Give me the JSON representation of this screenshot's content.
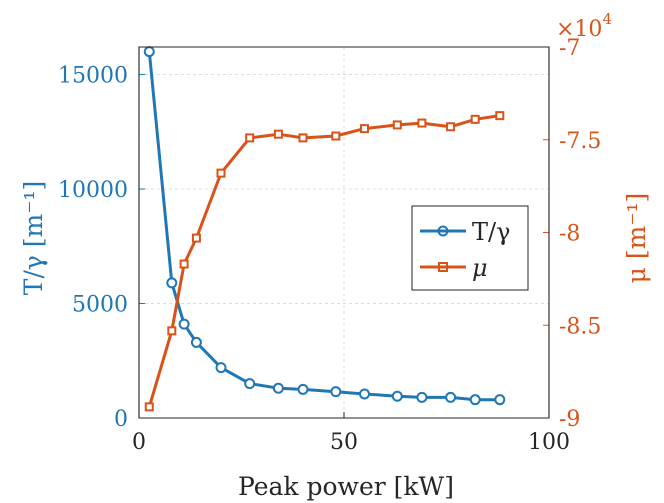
{
  "chart_data": {
    "type": "line",
    "xlabel": "Peak power [kW]",
    "xlim": [
      0,
      100
    ],
    "xticks": [
      0,
      50,
      100
    ],
    "y_left": {
      "label": "T/γ [m⁻¹]",
      "lim": [
        0,
        16200
      ],
      "ticks": [
        0,
        5000,
        10000,
        15000
      ],
      "color": "#1f77b4"
    },
    "y_right": {
      "label": "μ [m⁻¹]",
      "lim": [
        -90000,
        -70000
      ],
      "ticks": [
        -90000,
        -85000,
        -80000,
        -75000,
        -70000
      ],
      "tick_labels": [
        "-9",
        "-8.5",
        "-8",
        "-7.5",
        "-7"
      ],
      "exponent_label": "×10",
      "exponent_power": "4",
      "color": "#d95319"
    },
    "grid": true,
    "legend_position": "center-right",
    "series": [
      {
        "name": "T/γ",
        "axis": "left",
        "marker": "circle",
        "color": "#1f77b4",
        "x": [
          2.5,
          8,
          11,
          14,
          20,
          27,
          34,
          40,
          48,
          55,
          63,
          69,
          76,
          82,
          88
        ],
        "y": [
          16000,
          5900,
          4100,
          3300,
          2200,
          1500,
          1300,
          1250,
          1150,
          1050,
          950,
          900,
          900,
          800,
          800
        ]
      },
      {
        "name": "μ",
        "axis": "right",
        "marker": "square",
        "color": "#d95319",
        "x": [
          2.5,
          8,
          11,
          14,
          20,
          27,
          34,
          40,
          48,
          55,
          63,
          69,
          76,
          82,
          88
        ],
        "y": [
          -89400,
          -85300,
          -81700,
          -80300,
          -76800,
          -74900,
          -74700,
          -74900,
          -74800,
          -74400,
          -74200,
          -74100,
          -74300,
          -73900,
          -73700
        ]
      }
    ],
    "legend": [
      {
        "name": "T/γ"
      },
      {
        "name": "μ"
      }
    ]
  }
}
